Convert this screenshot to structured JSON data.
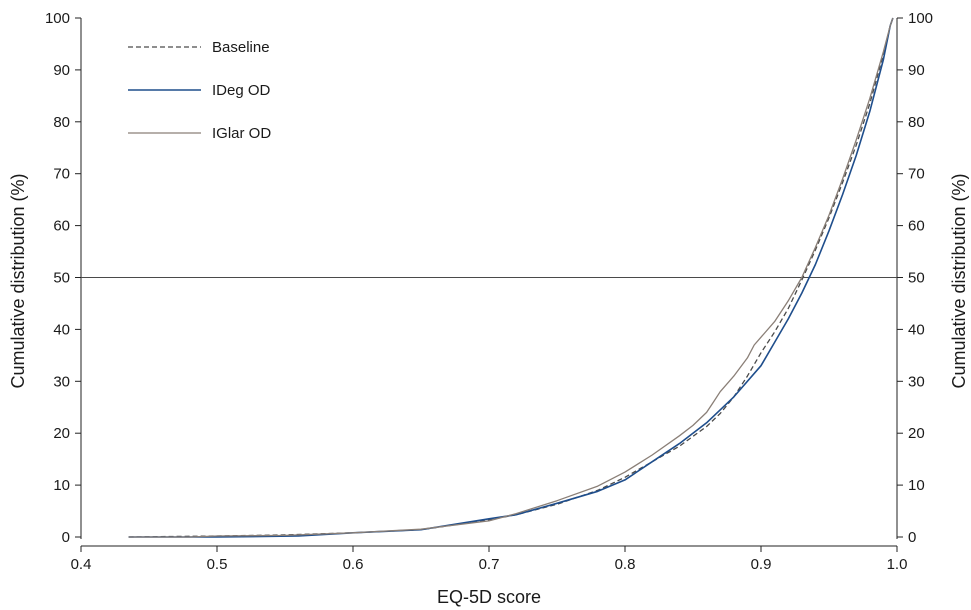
{
  "chart_data": {
    "type": "line",
    "title": "",
    "xlabel": "EQ-5D score",
    "ylabel": "Cumulative distribution (%)",
    "ylabel_right": "Cumulative distribution (%)",
    "xlim": [
      0.4,
      1.0
    ],
    "ylim": [
      0,
      100
    ],
    "x_ticks": [
      "0.4",
      "0.5",
      "0.6",
      "0.7",
      "0.8",
      "0.9",
      "1.0"
    ],
    "y_ticks": [
      "0",
      "10",
      "20",
      "30",
      "40",
      "50",
      "60",
      "70",
      "80",
      "90",
      "100"
    ],
    "reference_line_y": 50,
    "grid": false,
    "legend_position": "top-left",
    "series": [
      {
        "name": "Baseline",
        "color": "#4a4a4a",
        "style": "dashed",
        "points": [
          [
            0.435,
            0.0
          ],
          [
            0.5,
            0.2
          ],
          [
            0.55,
            0.4
          ],
          [
            0.6,
            0.8
          ],
          [
            0.65,
            1.4
          ],
          [
            0.7,
            3.3
          ],
          [
            0.72,
            4.3
          ],
          [
            0.75,
            6.3
          ],
          [
            0.78,
            9.0
          ],
          [
            0.8,
            11.5
          ],
          [
            0.82,
            14.5
          ],
          [
            0.84,
            17.5
          ],
          [
            0.86,
            21.3
          ],
          [
            0.87,
            23.8
          ],
          [
            0.88,
            27.0
          ],
          [
            0.89,
            31.0
          ],
          [
            0.9,
            35.5
          ],
          [
            0.91,
            39.5
          ],
          [
            0.92,
            44.0
          ],
          [
            0.93,
            49.5
          ],
          [
            0.94,
            55.3
          ],
          [
            0.95,
            61.5
          ],
          [
            0.96,
            68.3
          ],
          [
            0.97,
            75.5
          ],
          [
            0.98,
            83.5
          ],
          [
            0.99,
            93.0
          ],
          [
            0.995,
            98.5
          ],
          [
            0.997,
            100
          ]
        ]
      },
      {
        "name": "IDeg OD",
        "color": "#1f4e8c",
        "style": "solid",
        "points": [
          [
            0.435,
            0.0
          ],
          [
            0.5,
            0.0
          ],
          [
            0.56,
            0.2
          ],
          [
            0.6,
            0.8
          ],
          [
            0.65,
            1.4
          ],
          [
            0.7,
            3.5
          ],
          [
            0.72,
            4.3
          ],
          [
            0.75,
            6.5
          ],
          [
            0.78,
            8.8
          ],
          [
            0.8,
            11.0
          ],
          [
            0.82,
            14.5
          ],
          [
            0.84,
            18.0
          ],
          [
            0.86,
            22.0
          ],
          [
            0.88,
            27.0
          ],
          [
            0.9,
            33.0
          ],
          [
            0.91,
            37.5
          ],
          [
            0.92,
            42.0
          ],
          [
            0.93,
            47.0
          ],
          [
            0.94,
            52.5
          ],
          [
            0.95,
            59.0
          ],
          [
            0.96,
            66.0
          ],
          [
            0.97,
            73.5
          ],
          [
            0.98,
            82.0
          ],
          [
            0.99,
            92.0
          ],
          [
            0.995,
            98.5
          ],
          [
            0.997,
            100
          ]
        ]
      },
      {
        "name": "IGlar OD",
        "color": "#8a7f77",
        "style": "solid",
        "points": [
          [
            0.435,
            0.0
          ],
          [
            0.48,
            0.0
          ],
          [
            0.5,
            0.2
          ],
          [
            0.55,
            0.3
          ],
          [
            0.6,
            0.8
          ],
          [
            0.65,
            1.5
          ],
          [
            0.7,
            3.1
          ],
          [
            0.72,
            4.5
          ],
          [
            0.75,
            7.0
          ],
          [
            0.78,
            9.8
          ],
          [
            0.8,
            12.5
          ],
          [
            0.82,
            15.8
          ],
          [
            0.84,
            19.5
          ],
          [
            0.85,
            21.5
          ],
          [
            0.86,
            24.0
          ],
          [
            0.865,
            26.0
          ],
          [
            0.87,
            28.0
          ],
          [
            0.88,
            31.0
          ],
          [
            0.89,
            34.5
          ],
          [
            0.895,
            37.0
          ],
          [
            0.9,
            38.5
          ],
          [
            0.91,
            41.5
          ],
          [
            0.92,
            45.5
          ],
          [
            0.93,
            50.0
          ],
          [
            0.94,
            55.8
          ],
          [
            0.95,
            62.0
          ],
          [
            0.96,
            69.0
          ],
          [
            0.97,
            76.5
          ],
          [
            0.98,
            84.5
          ],
          [
            0.99,
            93.5
          ],
          [
            0.995,
            98.5
          ],
          [
            0.997,
            100
          ]
        ]
      }
    ]
  }
}
